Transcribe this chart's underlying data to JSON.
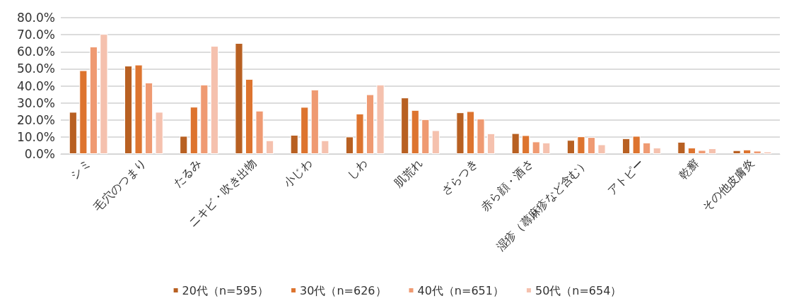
{
  "chart_data": {
    "type": "bar",
    "categories": [
      "シミ",
      "毛穴のつまり",
      "たるみ",
      "ニキビ・吹き出物",
      "小じわ",
      "しわ",
      "肌荒れ",
      "ざらつき",
      "赤ら顔・酒さ",
      "湿疹（蕁麻疹など含む）",
      "アトピー",
      "乾癬",
      "その他皮膚炎"
    ],
    "series": [
      {
        "name": "20代（n=595）",
        "color": "#b86022",
        "values": [
          24.7,
          51.8,
          10.6,
          65.1,
          11.2,
          10.2,
          33.1,
          24.4,
          12.2,
          8.2,
          9.2,
          7.1,
          2.2
        ]
      },
      {
        "name": "30代（n=626）",
        "color": "#dd742f",
        "values": [
          49.1,
          52.4,
          27.7,
          44.0,
          27.6,
          23.7,
          25.8,
          25.1,
          11.0,
          10.3,
          10.6,
          3.7,
          2.6
        ]
      },
      {
        "name": "40代（n=651）",
        "color": "#ef9a72",
        "values": [
          63.0,
          41.9,
          40.7,
          25.4,
          37.8,
          35.0,
          20.4,
          20.7,
          7.3,
          9.9,
          6.7,
          2.3,
          1.9
        ]
      },
      {
        "name": "50代（n=654）",
        "color": "#f5c1ae",
        "values": [
          70.4,
          24.7,
          63.4,
          8.0,
          8.0,
          40.7,
          13.9,
          12.1,
          6.7,
          5.6,
          3.7,
          3.3,
          1.4
        ]
      }
    ],
    "ylim": [
      0,
      80
    ],
    "yticks": [
      {
        "value": 0,
        "label": "0.0%"
      },
      {
        "value": 10,
        "label": "10.0%"
      },
      {
        "value": 20,
        "label": "20.0%"
      },
      {
        "value": 30,
        "label": "30.0%"
      },
      {
        "value": 40,
        "label": "40.0%"
      },
      {
        "value": 50,
        "label": "50.0%"
      },
      {
        "value": 60,
        "label": "60.0%"
      },
      {
        "value": 70,
        "label": "70.0%"
      },
      {
        "value": 80,
        "label": "80.0%"
      }
    ],
    "grid": "y",
    "legend": "bottom"
  }
}
